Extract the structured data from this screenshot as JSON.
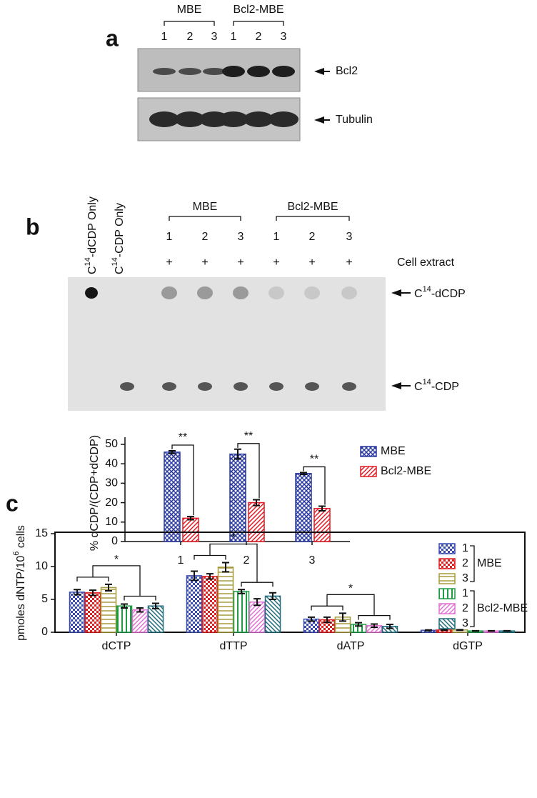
{
  "panel_a": {
    "label": "a",
    "groups": [
      "MBE",
      "Bcl2-MBE"
    ],
    "lanes": [
      "1",
      "2",
      "3",
      "1",
      "2",
      "3"
    ],
    "bands": [
      "Bcl2",
      "Tubulin"
    ]
  },
  "panel_b": {
    "label": "b",
    "controls": [
      {
        "base": "C",
        "sup": "14",
        "rest": "-dCDP Only"
      },
      {
        "base": "C",
        "sup": "14",
        "rest": "-CDP Only"
      }
    ],
    "groups": [
      "MBE",
      "Bcl2-MBE"
    ],
    "lanes": [
      "1",
      "2",
      "3",
      "1",
      "2",
      "3"
    ],
    "plus": [
      "+",
      "+",
      "+",
      "+",
      "+",
      "+"
    ],
    "row_label": "Cell extract",
    "spots": [
      {
        "base": "C",
        "sup": "14",
        "rest": "-dCDP"
      },
      {
        "base": "C",
        "sup": "14",
        "rest": "-CDP"
      }
    ]
  },
  "panel_c": {
    "label": "c"
  },
  "chart_data": [
    {
      "type": "bar",
      "ylabel": "% dCDP/(CDP+dCDP)",
      "categories": [
        "1",
        "2",
        "3"
      ],
      "series": [
        {
          "name": "MBE",
          "color": "#2b3a9e",
          "pattern": "crosshatch",
          "values": [
            46,
            45,
            35
          ],
          "errors": [
            0.7,
            2.5,
            0.5
          ]
        },
        {
          "name": "Bcl2-MBE",
          "color": "#e01b24",
          "pattern": "diagonal",
          "values": [
            12,
            20,
            17
          ],
          "errors": [
            0.8,
            1.5,
            1.2
          ]
        }
      ],
      "significance": [
        "**",
        "**",
        "**"
      ],
      "ylim": [
        0,
        50
      ],
      "yticks": [
        0,
        10,
        20,
        30,
        40,
        50
      ]
    },
    {
      "type": "bar",
      "ylabel": {
        "base": "pmoles dNTP/10",
        "sup": "6",
        "rest": " cells"
      },
      "categories": [
        "dCTP",
        "dTTP",
        "dATP",
        "dGTP"
      ],
      "series": [
        {
          "name": "1",
          "color": "#3a4cb0",
          "pattern": "checker",
          "values": [
            6.1,
            8.6,
            2.0,
            0.3
          ],
          "errors": [
            0.4,
            0.7,
            0.3,
            0.05
          ]
        },
        {
          "name": "2",
          "color": "#e02020",
          "pattern": "checker",
          "values": [
            6.0,
            8.5,
            1.9,
            0.35
          ],
          "errors": [
            0.4,
            0.4,
            0.4,
            0.05
          ]
        },
        {
          "name": "3",
          "color": "#a89a3c",
          "pattern": "horizontal",
          "values": [
            6.8,
            9.9,
            2.3,
            0.35
          ],
          "errors": [
            0.5,
            0.7,
            0.6,
            0.05
          ]
        },
        {
          "name": "1",
          "color": "#1e9c45",
          "pattern": "vertical",
          "values": [
            4.0,
            6.2,
            1.2,
            0.2
          ],
          "errors": [
            0.3,
            0.3,
            0.25,
            0.03
          ]
        },
        {
          "name": "2",
          "color": "#e070d4",
          "pattern": "diagonal",
          "values": [
            3.4,
            4.6,
            1.0,
            0.2
          ],
          "errors": [
            0.3,
            0.5,
            0.25,
            0.03
          ]
        },
        {
          "name": "3",
          "color": "#1d6b7c",
          "pattern": "backdiagonal",
          "values": [
            4.0,
            5.5,
            0.9,
            0.2
          ],
          "errors": [
            0.4,
            0.5,
            0.3,
            0.03
          ]
        }
      ],
      "legend_groups": [
        "MBE",
        "Bcl2-MBE"
      ],
      "significance": [
        "*",
        "*",
        "*"
      ],
      "ylim": [
        0,
        15
      ],
      "yticks": [
        0,
        5,
        10,
        15
      ]
    }
  ]
}
